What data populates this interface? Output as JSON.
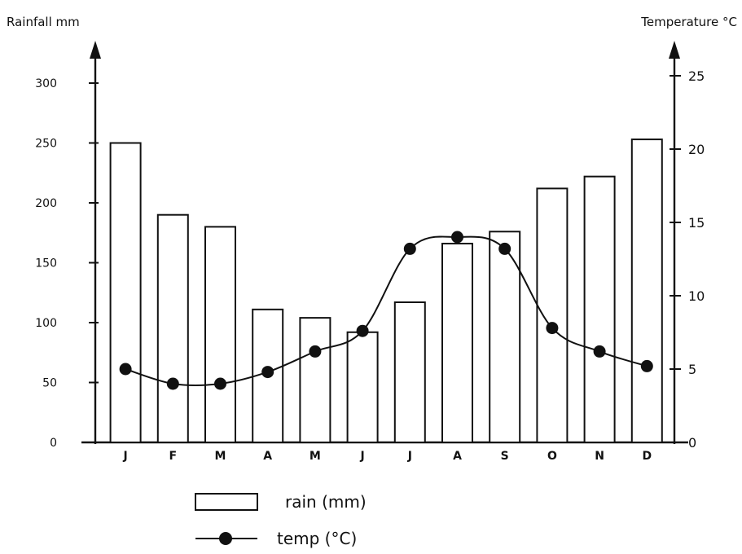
{
  "chart_data": {
    "type": "bar",
    "categories": [
      "J",
      "F",
      "M",
      "A",
      "M",
      "J",
      "J",
      "A",
      "S",
      "O",
      "N",
      "D"
    ],
    "series": [
      {
        "name": "rain (mm)",
        "type": "bar",
        "axis": "left",
        "values": [
          250,
          190,
          180,
          111,
          104,
          92,
          117,
          166,
          176,
          212,
          222,
          253
        ]
      },
      {
        "name": "temp (°C)",
        "type": "line",
        "axis": "right",
        "values": [
          5.0,
          4.0,
          4.0,
          4.8,
          6.2,
          7.6,
          13.2,
          14.0,
          13.2,
          7.8,
          6.2,
          5.2
        ]
      }
    ],
    "y_left": {
      "label": "Rainfall  mm",
      "ylim": [
        0,
        300
      ],
      "ticks": [
        "0",
        "50",
        "100",
        "150",
        "200",
        "250",
        "300"
      ]
    },
    "y_right": {
      "label": "Temperature  °C",
      "ylim": [
        0,
        25
      ],
      "ticks": [
        "0",
        "5",
        "10",
        "15",
        "20",
        "25"
      ]
    },
    "grid": false,
    "legend_position": "bottom-center"
  }
}
